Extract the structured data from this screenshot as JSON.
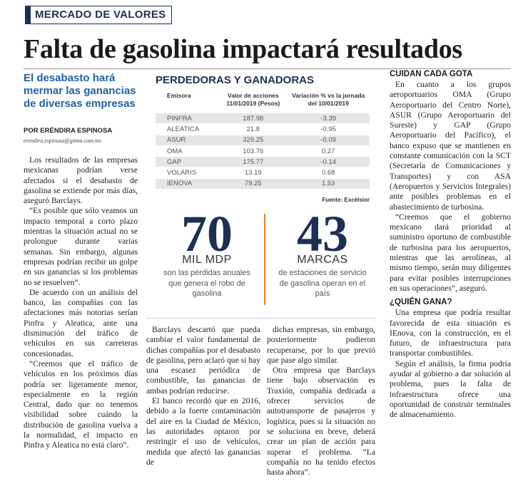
{
  "section": "MERCADO DE VALORES",
  "headline": "Falta de gasolina impactará resultados",
  "deck": "El desabasto hará mermar las ganancias de diversas empresas",
  "byline": "POR ERÉNDIRA ESPINOSA",
  "email": "erendira.espinosa@gimm.com.mx",
  "column1": {
    "paragraphs": [
      "Los resultados de las empresas mexicanas podrían verse afectados si el desabasto de gasolina se extiende por más días, aseguró Barclays.",
      "“Es posible que sólo veamos un impacto temporal a corto plazo mientras la situación actual no se prolongue durante varias semanas. Sin embargo, algunas empresas podrían recibir un golpe en sus ganancias si los problemas no se resuelven”.",
      "De acuerdo con un análisis del banco, las compañías con las afectaciones más notorias serían Pinfra y Aleatica, ante una disminución del tráfico de vehículos en sus carreteras concesionadas.",
      "“Creemos que el tráfico de vehículos en los próximos días podría ser ligeramente menor, especialmente en la región Central, dado que no tenemos visibilidad sobre cuándo la distribución de gasolina vuelva a la normalidad, el impacto en Pinfra y Aleatica no está claro”."
    ]
  },
  "table": {
    "title": "PERDEDORAS Y GANADORAS",
    "headers": [
      "Emisora",
      "Valor de acciones 11/01/2019 (Pesos)",
      "Variación % vs la jornada del 10/01/2019"
    ],
    "rows": [
      [
        "PINFRA",
        "187.98",
        "-3.39"
      ],
      [
        "ALEATICA",
        "21.8",
        "-0.95"
      ],
      [
        "ASUR",
        "329.25",
        "-0.09"
      ],
      [
        "OMA",
        "103.76",
        "0.27"
      ],
      [
        "GAP",
        "175.77",
        "-0.14"
      ],
      [
        "VOLARIS",
        "13.19",
        "0.68"
      ],
      [
        "IENOVA",
        "79.25",
        "1.53"
      ]
    ],
    "source": "Fuente: Excélsior"
  },
  "stats": [
    {
      "number": "70",
      "unit": "MIL MDP",
      "text": "son las pérdidas anuales que genera el robo de gasolina"
    },
    {
      "number": "43",
      "unit": "MARCAS",
      "text": "de estaciones de servicio de gasolina operan en el país"
    }
  ],
  "column2": {
    "paragraphs": [
      "Barclays descartó que pueda cambiar el valor fundamental de dichas compañías por el desabasto de gasolina, pero aclaró que si hay una escasez periódica de combustible, las ganancias de ambas podrían reducirse.",
      "El banco recordó que en 2016, debido a la fuerte contaminación del aire en la Ciudad de México, las autoridades optaron por restringir el uso de vehículos, medida que afectó las ganancias de"
    ]
  },
  "column3": {
    "paragraphs": [
      "dichas empresas, sin embargo, posteriormente pudieron recuperarse, por lo que previó que pase algo similar.",
      "Otra empresa que Barclays tiene bajo observación es Traxión, compañía dedicada a ofrecer servicios de autotransporte de pasajeros y logística, pues si la situación no se soluciona en breve, deberá crear un plan de acción para superar el problema. “La compañía no ha tenido efectos hasta ahora”."
    ]
  },
  "column4": {
    "heading1": "CUIDAN CADA GOTA",
    "paragraphs1": [
      "En cuanto a los grupos aeroportuarios OMA (Grupo Aeroportuario del Centro Norte), ASUR (Grupo Aeroportuario del Sureste) y GAP (Grupo Aeroportuario del Pacífico), el banco expuso que se mantienen en constante comunicación con la SCT (Secretaría de Comunicaciones y Transportes) y con ASA (Aeropuertos y Servicios Integrales) ante posibles problemas en el abastecimiento de turbosina.",
      "“Creemos que el gobierno mexicano dará prioridad al suministro oportuno de combustible de turbosina para los aeropuertos, mientras que las aerolíneas, al mismo tiempo, serán muy diligentes para evitar posibles interrupciones en sus operaciones”, aseguró."
    ],
    "heading2": "¿QUIÉN GANA?",
    "paragraphs2": [
      "Una empresa que podría resultar favorecida de esta situación es IEnova, con la construcción, en el futuro, de infraestructura para transportar combustibles.",
      "Según el análisis, la firma podría ayudar al gobierno a dar solución al problema, pues la falta de infraestructura ofrece una oportunidad de construir terminales de almacenamiento."
    ]
  }
}
